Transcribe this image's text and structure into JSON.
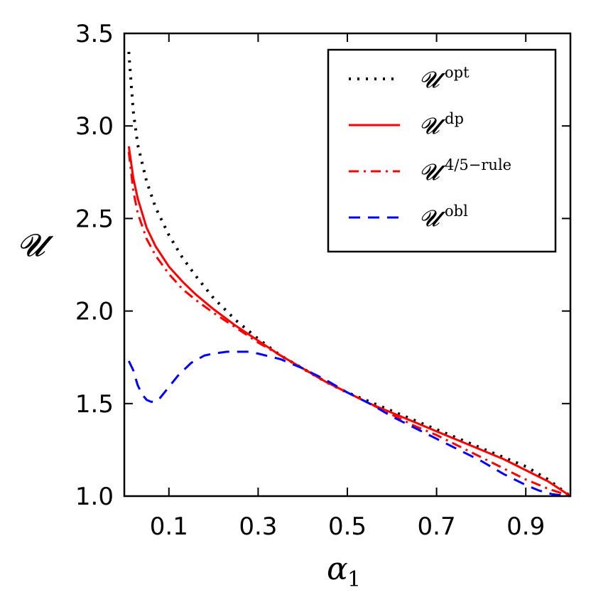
{
  "chart_data": {
    "type": "line",
    "title": "",
    "xlabel": "α",
    "xlabel_sub": "1",
    "ylabel": "𝓤",
    "xlim": [
      0.0,
      1.0
    ],
    "ylim": [
      1.0,
      3.5
    ],
    "xticks": [
      0.1,
      0.3,
      0.5,
      0.7,
      0.9
    ],
    "xtick_labels": [
      "0.1",
      "0.3",
      "0.5",
      "0.7",
      "0.9"
    ],
    "yticks": [
      1.0,
      1.5,
      2.0,
      2.5,
      3.0,
      3.5
    ],
    "ytick_labels": [
      "1.0",
      "1.5",
      "2.0",
      "2.5",
      "3.0",
      "3.5"
    ],
    "legend_position": "top-right",
    "series": [
      {
        "name": "opt",
        "legend_base": "𝓤",
        "legend_sup": "opt",
        "color": "#000000",
        "style": "dotted",
        "x": [
          0.01,
          0.02,
          0.03,
          0.05,
          0.07,
          0.1,
          0.13,
          0.16,
          0.2,
          0.25,
          0.3,
          0.35,
          0.4,
          0.45,
          0.5,
          0.55,
          0.6,
          0.65,
          0.7,
          0.75,
          0.8,
          0.85,
          0.9,
          0.95,
          1.0
        ],
        "y": [
          3.4,
          3.08,
          2.9,
          2.7,
          2.56,
          2.41,
          2.29,
          2.19,
          2.07,
          1.95,
          1.85,
          1.76,
          1.69,
          1.62,
          1.56,
          1.51,
          1.46,
          1.41,
          1.36,
          1.31,
          1.26,
          1.21,
          1.16,
          1.09,
          1.0
        ]
      },
      {
        "name": "dp",
        "legend_base": "𝓤",
        "legend_sup": "dp",
        "color": "#ff0000",
        "style": "solid",
        "x": [
          0.01,
          0.02,
          0.03,
          0.05,
          0.07,
          0.1,
          0.13,
          0.16,
          0.2,
          0.25,
          0.3,
          0.35,
          0.4,
          0.45,
          0.5,
          0.55,
          0.6,
          0.65,
          0.7,
          0.75,
          0.8,
          0.85,
          0.9,
          0.95,
          1.0
        ],
        "y": [
          2.89,
          2.72,
          2.61,
          2.45,
          2.35,
          2.24,
          2.16,
          2.09,
          2.01,
          1.92,
          1.84,
          1.76,
          1.69,
          1.62,
          1.56,
          1.5,
          1.45,
          1.4,
          1.35,
          1.3,
          1.25,
          1.2,
          1.14,
          1.08,
          1.0
        ]
      },
      {
        "name": "4/5-rule",
        "legend_base": "𝓤",
        "legend_sup": "4/5−rule",
        "color": "#ff0000",
        "style": "dashdot",
        "x": [
          0.01,
          0.02,
          0.03,
          0.05,
          0.07,
          0.1,
          0.13,
          0.16,
          0.2,
          0.25,
          0.3,
          0.35,
          0.4,
          0.45,
          0.5,
          0.55,
          0.6,
          0.65,
          0.7,
          0.75,
          0.8,
          0.85,
          0.9,
          0.95,
          1.0
        ],
        "y": [
          2.86,
          2.65,
          2.53,
          2.39,
          2.3,
          2.2,
          2.12,
          2.06,
          1.99,
          1.91,
          1.83,
          1.76,
          1.69,
          1.62,
          1.56,
          1.5,
          1.44,
          1.38,
          1.33,
          1.27,
          1.21,
          1.15,
          1.09,
          1.04,
          1.0
        ]
      },
      {
        "name": "obl",
        "legend_base": "𝓤",
        "legend_sup": "obl",
        "color": "#0000ff",
        "style": "dashed",
        "x": [
          0.01,
          0.02,
          0.03,
          0.04,
          0.05,
          0.06,
          0.07,
          0.08,
          0.1,
          0.12,
          0.15,
          0.18,
          0.2,
          0.23,
          0.25,
          0.28,
          0.3,
          0.35,
          0.4,
          0.45,
          0.5,
          0.55,
          0.6,
          0.65,
          0.7,
          0.75,
          0.8,
          0.85,
          0.9,
          0.93,
          0.96,
          1.0
        ],
        "y": [
          1.73,
          1.68,
          1.6,
          1.55,
          1.52,
          1.51,
          1.51,
          1.53,
          1.59,
          1.65,
          1.72,
          1.76,
          1.77,
          1.78,
          1.78,
          1.78,
          1.77,
          1.74,
          1.69,
          1.63,
          1.56,
          1.5,
          1.43,
          1.37,
          1.31,
          1.25,
          1.19,
          1.12,
          1.06,
          1.03,
          1.01,
          1.0
        ]
      }
    ]
  }
}
